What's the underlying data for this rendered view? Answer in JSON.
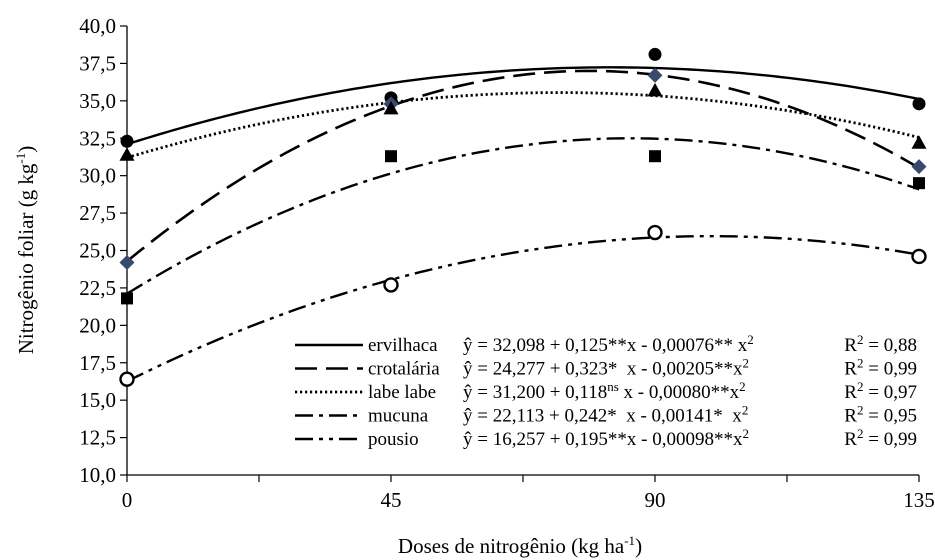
{
  "chart_data": {
    "type": "scatter",
    "xlabel": "Doses de nitrogênio (kg ha",
    "xlabel_sup": "-1",
    "xlabel_end": ")",
    "ylabel": "Nitrogênio foliar (g kg",
    "ylabel_sup": "-1",
    "ylabel_end": ")",
    "xlim": [
      0,
      135
    ],
    "ylim": [
      10,
      40
    ],
    "x_ticks": [
      0,
      45,
      90,
      135
    ],
    "x_tick_labels": [
      "0",
      "45",
      "90",
      "135"
    ],
    "y_ticks": [
      10,
      12.5,
      15,
      17.5,
      20,
      22.5,
      25,
      27.5,
      30,
      32.5,
      35,
      37.5,
      40
    ],
    "y_tick_labels": [
      "10,0",
      "12,5",
      "15,0",
      "17,5",
      "20,0",
      "22,5",
      "25,0",
      "27,5",
      "30,0",
      "32,5",
      "35,0",
      "37,5",
      "40,0"
    ],
    "grid": false,
    "legend_position": "bottom-right",
    "x": [
      0,
      45,
      90,
      135
    ],
    "series": [
      {
        "name": "ervilhaca",
        "marker": "circle-filled",
        "dash": "solid",
        "values": [
          32.3,
          35.2,
          38.1,
          34.8
        ],
        "eq_prefix": "ŷ = 32,098 + 0,125**x - 0,00076** x",
        "r2": "R",
        "r2_value": " = 0,88",
        "coef": [
          32.098,
          0.125,
          -0.00076
        ]
      },
      {
        "name": "crotalária",
        "marker": "diamond",
        "dash": "long-dash",
        "values": [
          24.2,
          34.8,
          36.7,
          30.6
        ],
        "eq_prefix": "ŷ = 24,277 + 0,323*  x - 0,00205**x",
        "r2": "R",
        "r2_value": " = 0,99",
        "coef": [
          24.277,
          0.323,
          -0.00205
        ]
      },
      {
        "name": "labe labe",
        "marker": "triangle",
        "dash": "dotted",
        "values": [
          31.4,
          34.5,
          35.7,
          32.2
        ],
        "eq_prefix": "ŷ = 31,200 + 0,118",
        "eq_sup": "ns",
        "eq_suffix": " x - 0,00080**x",
        "r2": "R",
        "r2_value": " = 0,97",
        "coef": [
          31.2,
          0.118,
          -0.0008
        ]
      },
      {
        "name": "mucuna",
        "marker": "square",
        "dash": "dash-dot",
        "values": [
          21.8,
          31.3,
          31.3,
          29.5
        ],
        "eq_prefix": "ŷ = 22,113 + 0,242*  x - 0,00141*  x",
        "r2": "R",
        "r2_value": " = 0,95",
        "coef": [
          22.113,
          0.242,
          -0.00141
        ]
      },
      {
        "name": "pousio",
        "marker": "circle-open",
        "dash": "dash-dot-dot",
        "values": [
          16.4,
          22.7,
          26.2,
          24.6
        ],
        "eq_prefix": "ŷ = 16,257 + 0,195**x - 0,00098**x",
        "r2": "R",
        "r2_value": " = 0,99",
        "coef": [
          16.257,
          0.195,
          -0.00098
        ]
      }
    ]
  }
}
